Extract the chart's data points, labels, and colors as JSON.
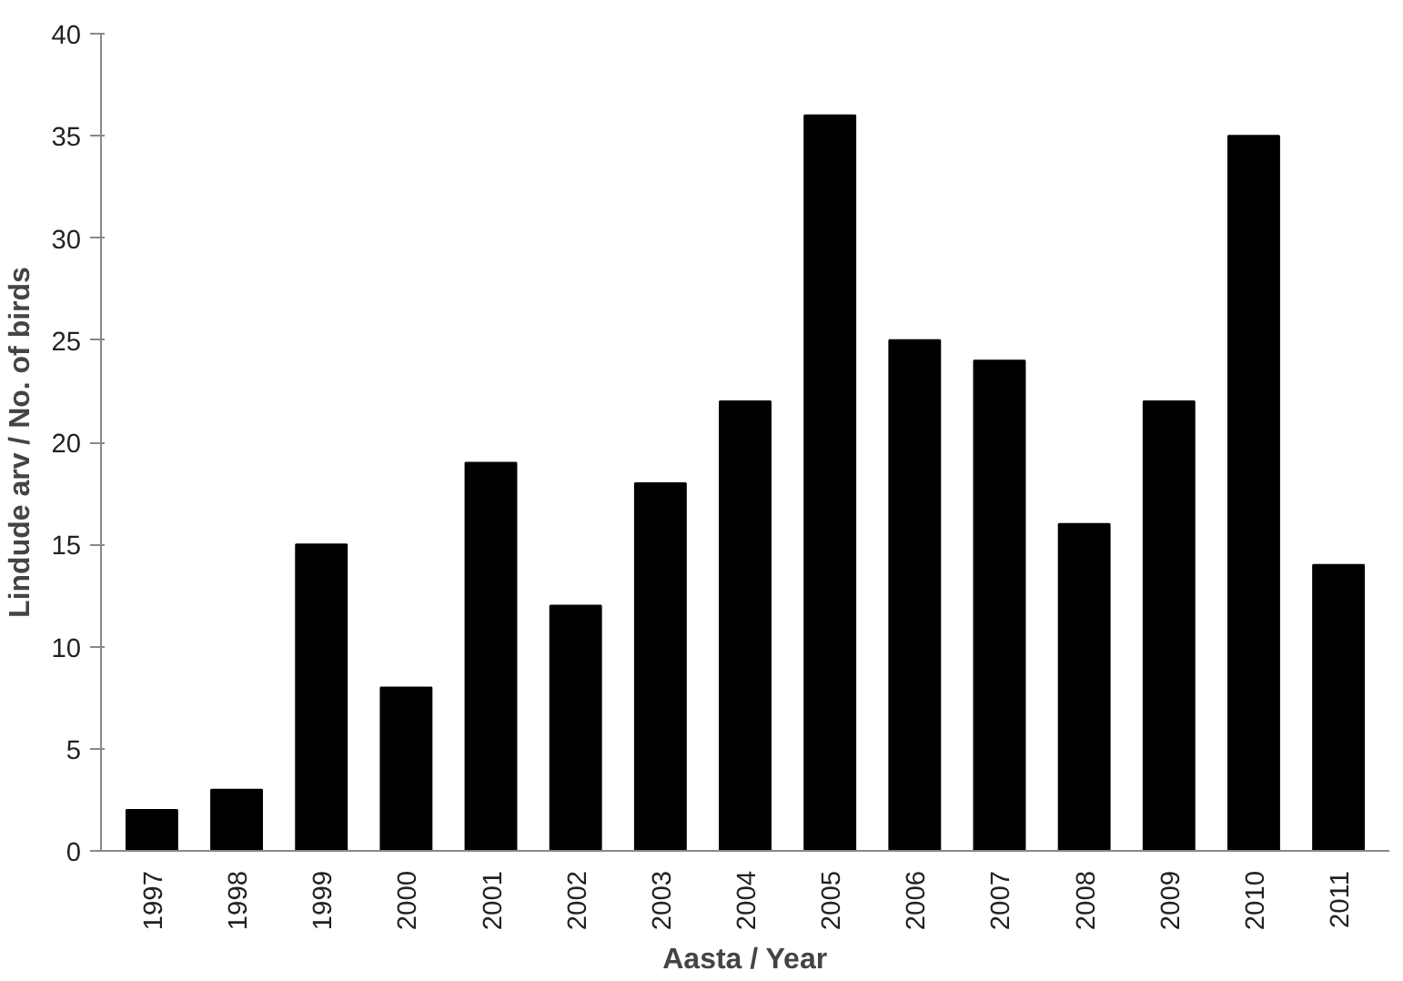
{
  "chart_data": {
    "type": "bar",
    "xlabel": "Aasta / Year",
    "ylabel": "Lindude arv / No. of birds",
    "categories": [
      "1997",
      "1998",
      "1999",
      "2000",
      "2001",
      "2002",
      "2003",
      "2004",
      "2005",
      "2006",
      "2007",
      "2008",
      "2009",
      "2010",
      "2011"
    ],
    "values": [
      2,
      3,
      15,
      8,
      19,
      12,
      18,
      22,
      36,
      25,
      24,
      16,
      22,
      35,
      14
    ],
    "color": "#000000",
    "ylim": [
      0,
      40
    ],
    "yticks": [
      0,
      5,
      10,
      15,
      20,
      25,
      30,
      35,
      40
    ],
    "grid": false
  }
}
